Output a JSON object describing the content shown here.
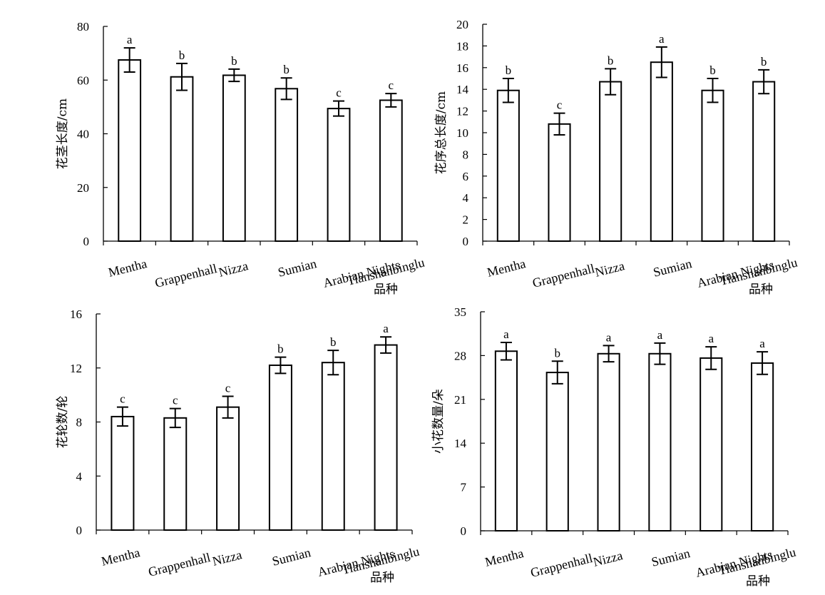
{
  "chart_data": [
    {
      "type": "bar",
      "categories": [
        "Mentha",
        "Grappenhall",
        "Nizza",
        "Sumian",
        "Arabian Nights",
        "Tianshanbinglu"
      ],
      "values": [
        67.5,
        61.2,
        61.8,
        56.8,
        49.4,
        52.5
      ],
      "errors": [
        4.5,
        5.0,
        2.3,
        4.0,
        2.8,
        2.5
      ],
      "significance": [
        "a",
        "b",
        "b",
        "b",
        "c",
        "c"
      ],
      "ylabel": "花茎长度/cm",
      "xlabel": "品种",
      "ylim": [
        0,
        80
      ],
      "yticks": [
        0,
        20,
        40,
        60,
        80
      ]
    },
    {
      "type": "bar",
      "categories": [
        "Mentha",
        "Grappenhall",
        "Nizza",
        "Sumian",
        "Arabian Nights",
        "Tianshanbinglu"
      ],
      "values": [
        13.9,
        10.8,
        14.7,
        16.5,
        13.9,
        14.7
      ],
      "errors": [
        1.1,
        1.0,
        1.2,
        1.4,
        1.1,
        1.1
      ],
      "significance": [
        "b",
        "c",
        "b",
        "a",
        "b",
        "b"
      ],
      "ylabel": "花序总长度/cm",
      "xlabel": "品种",
      "ylim": [
        0,
        20
      ],
      "yticks": [
        0,
        2,
        4,
        6,
        8,
        10,
        12,
        14,
        16,
        18,
        20
      ]
    },
    {
      "type": "bar",
      "categories": [
        "Mentha",
        "Grappenhall",
        "Nizza",
        "Sumian",
        "Arabian Nights",
        "Tianshanbinglu"
      ],
      "values": [
        8.4,
        8.3,
        9.1,
        12.2,
        12.4,
        13.7
      ],
      "errors": [
        0.7,
        0.7,
        0.8,
        0.6,
        0.9,
        0.6
      ],
      "significance": [
        "c",
        "c",
        "c",
        "b",
        "b",
        "a"
      ],
      "ylabel": "花轮数/轮",
      "xlabel": "品种",
      "ylim": [
        0,
        16
      ],
      "yticks": [
        0,
        4,
        8,
        12,
        16
      ]
    },
    {
      "type": "bar",
      "categories": [
        "Mentha",
        "Grappenhall",
        "Nizza",
        "Sumian",
        "Arabian Nights",
        "Tianshanbinglu"
      ],
      "values": [
        28.7,
        25.3,
        28.3,
        28.3,
        27.6,
        26.8
      ],
      "errors": [
        1.4,
        1.8,
        1.3,
        1.7,
        1.8,
        1.8
      ],
      "significance": [
        "a",
        "b",
        "a",
        "a",
        "a",
        "a"
      ],
      "ylabel": "小花数量/朵",
      "xlabel": "品种",
      "ylim": [
        0,
        35
      ],
      "yticks": [
        0,
        7,
        14,
        21,
        28,
        35
      ]
    }
  ]
}
